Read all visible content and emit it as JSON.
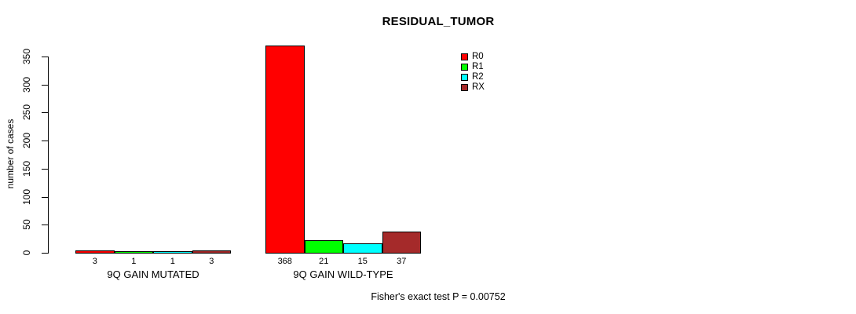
{
  "chart": {
    "title": "RESIDUAL_TUMOR",
    "ylabel": "number of cases",
    "footnote": "Fisher's exact test P = 0.00752"
  },
  "chart_data": {
    "type": "bar",
    "title": "RESIDUAL_TUMOR",
    "xlabel": "",
    "ylabel": "number of cases",
    "ylim": [
      0,
      350
    ],
    "y_ticks": [
      0,
      50,
      100,
      150,
      200,
      250,
      300,
      350
    ],
    "grid": false,
    "categories": [
      "9Q GAIN MUTATED",
      "9Q GAIN WILD-TYPE"
    ],
    "series": [
      {
        "name": "R0",
        "color": "#FF0000",
        "values": [
          3,
          368
        ]
      },
      {
        "name": "R1",
        "color": "#00FF00",
        "values": [
          1,
          21
        ]
      },
      {
        "name": "R2",
        "color": "#00FFFF",
        "values": [
          1,
          15
        ]
      },
      {
        "name": "RX",
        "color": "#A52A2A",
        "values": [
          3,
          37
        ]
      }
    ],
    "bar_value_labels": [
      [
        3,
        1,
        1,
        3
      ],
      [
        368,
        21,
        15,
        37
      ]
    ],
    "legend": {
      "position": "right-top-inner",
      "entries": [
        "R0",
        "R1",
        "R2",
        "RX"
      ]
    },
    "annotation": "Fisher's exact test P = 0.00752",
    "bar_border_color": "#000000"
  }
}
